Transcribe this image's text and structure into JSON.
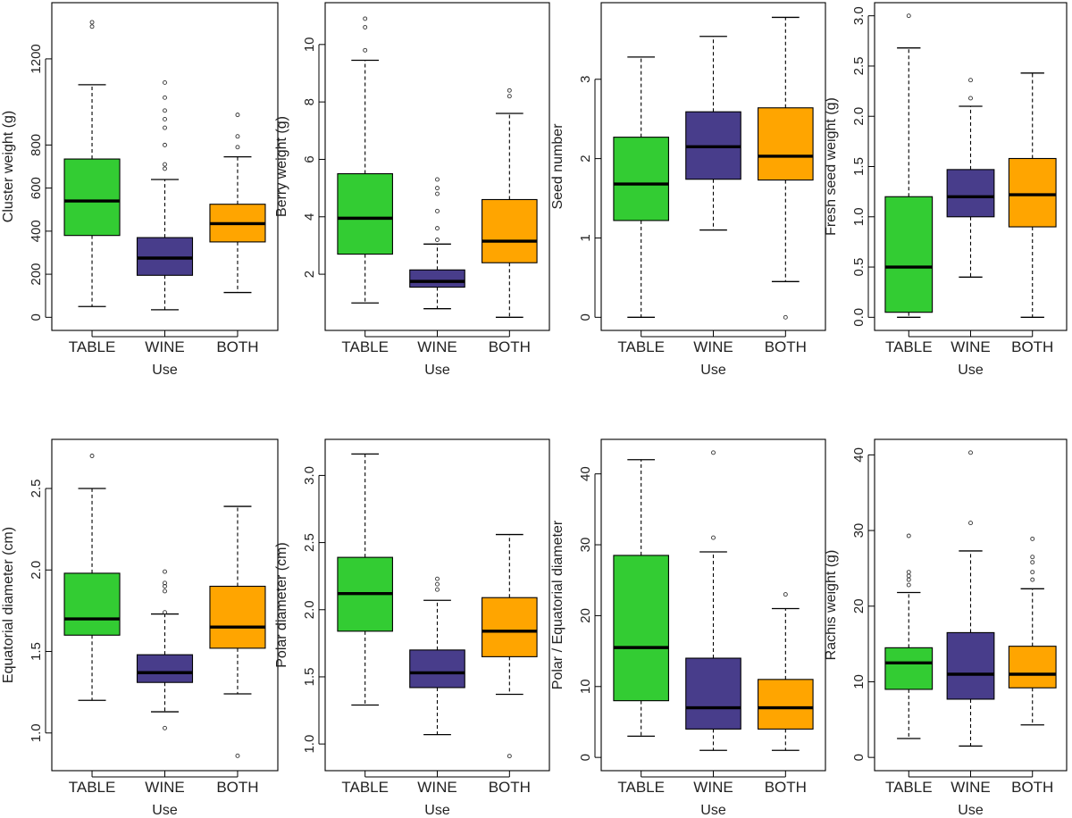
{
  "figure": {
    "palette": {
      "TABLE": "#33cc33",
      "WINE": "#483d8b",
      "BOTH": "#ffa500"
    }
  },
  "chart_data": [
    {
      "type": "boxplot",
      "ylabel": "Cluster weight (g)",
      "xlabel": "Use",
      "categories": [
        "TABLE",
        "WINE",
        "BOTH"
      ],
      "ylim": [
        0,
        1400
      ],
      "yticks": [
        0,
        200,
        400,
        600,
        800,
        1200
      ],
      "boxes": [
        {
          "min": 50,
          "q1": 380,
          "median": 540,
          "q3": 735,
          "max": 1080,
          "outliers": [
            1350,
            1370
          ]
        },
        {
          "min": 35,
          "q1": 195,
          "median": 275,
          "q3": 370,
          "max": 640,
          "outliers": [
            690,
            710,
            800,
            880,
            920,
            960,
            1020,
            1090
          ]
        },
        {
          "min": 115,
          "q1": 350,
          "median": 435,
          "q3": 525,
          "max": 745,
          "outliers": [
            790,
            840,
            940
          ]
        }
      ]
    },
    {
      "type": "boxplot",
      "ylabel": "Berry weight (g)",
      "xlabel": "Use",
      "categories": [
        "TABLE",
        "WINE",
        "BOTH"
      ],
      "ylim": [
        0.5,
        11
      ],
      "yticks": [
        2,
        4,
        6,
        8,
        10
      ],
      "boxes": [
        {
          "min": 1.0,
          "q1": 2.7,
          "median": 3.95,
          "q3": 5.5,
          "max": 9.45,
          "outliers": [
            9.8,
            10.6,
            10.9
          ]
        },
        {
          "min": 0.8,
          "q1": 1.55,
          "median": 1.75,
          "q3": 2.15,
          "max": 3.05,
          "outliers": [
            3.2,
            3.6,
            4.2,
            4.8,
            5.0,
            5.3
          ]
        },
        {
          "min": 0.5,
          "q1": 2.4,
          "median": 3.15,
          "q3": 4.6,
          "max": 7.6,
          "outliers": [
            8.2,
            8.4
          ]
        }
      ]
    },
    {
      "type": "boxplot",
      "ylabel": "Seed number",
      "xlabel": "Use",
      "categories": [
        "TABLE",
        "WINE",
        "BOTH"
      ],
      "ylim": [
        0,
        3.8
      ],
      "yticks": [
        0,
        1,
        2,
        3
      ],
      "boxes": [
        {
          "min": 0,
          "q1": 1.22,
          "median": 1.68,
          "q3": 2.27,
          "max": 3.28,
          "outliers": []
        },
        {
          "min": 1.1,
          "q1": 1.74,
          "median": 2.15,
          "q3": 2.59,
          "max": 3.54,
          "outliers": []
        },
        {
          "min": 0.45,
          "q1": 1.73,
          "median": 2.03,
          "q3": 2.64,
          "max": 3.78,
          "outliers": [
            0
          ]
        }
      ]
    },
    {
      "type": "boxplot",
      "ylabel": "Fresh seed weight (g)",
      "xlabel": "Use",
      "categories": [
        "TABLE",
        "WINE",
        "BOTH"
      ],
      "ylim": [
        0,
        3.0
      ],
      "yticks": [
        0.0,
        0.5,
        1.0,
        1.5,
        2.0,
        2.5,
        3.0
      ],
      "boxes": [
        {
          "min": 0.0,
          "q1": 0.05,
          "median": 0.5,
          "q3": 1.2,
          "max": 2.68,
          "outliers": [
            3.0
          ]
        },
        {
          "min": 0.4,
          "q1": 1.0,
          "median": 1.2,
          "q3": 1.47,
          "max": 2.1,
          "outliers": [
            2.18,
            2.36
          ]
        },
        {
          "min": 0.0,
          "q1": 0.9,
          "median": 1.22,
          "q3": 1.58,
          "max": 2.43,
          "outliers": []
        }
      ]
    },
    {
      "type": "boxplot",
      "ylabel": "Equatorial diameter (cm)",
      "xlabel": "Use",
      "categories": [
        "TABLE",
        "WINE",
        "BOTH"
      ],
      "ylim": [
        0.85,
        2.72
      ],
      "yticks": [
        1.0,
        1.5,
        2.0,
        2.5
      ],
      "boxes": [
        {
          "min": 1.2,
          "q1": 1.6,
          "median": 1.7,
          "q3": 1.98,
          "max": 2.5,
          "outliers": [
            2.7
          ]
        },
        {
          "min": 1.13,
          "q1": 1.31,
          "median": 1.37,
          "q3": 1.48,
          "max": 1.73,
          "outliers": [
            1.03,
            1.74,
            1.87,
            1.9,
            1.92,
            1.99
          ]
        },
        {
          "min": 1.24,
          "q1": 1.52,
          "median": 1.65,
          "q3": 1.9,
          "max": 2.39,
          "outliers": [
            0.86
          ]
        }
      ]
    },
    {
      "type": "boxplot",
      "ylabel": "Polar diameter (cm)",
      "xlabel": "Use",
      "categories": [
        "TABLE",
        "WINE",
        "BOTH"
      ],
      "ylim": [
        0.9,
        3.17
      ],
      "yticks": [
        1.0,
        1.5,
        2.0,
        2.5,
        3.0
      ],
      "boxes": [
        {
          "min": 1.29,
          "q1": 1.84,
          "median": 2.12,
          "q3": 2.39,
          "max": 3.16,
          "outliers": []
        },
        {
          "min": 1.07,
          "q1": 1.42,
          "median": 1.53,
          "q3": 1.7,
          "max": 2.07,
          "outliers": [
            2.15,
            2.19,
            2.23
          ]
        },
        {
          "min": 1.37,
          "q1": 1.65,
          "median": 1.84,
          "q3": 2.09,
          "max": 2.56,
          "outliers": [
            0.91
          ]
        }
      ]
    },
    {
      "type": "boxplot",
      "ylabel": "Polar / Equatorial diameter",
      "xlabel": "Use",
      "categories": [
        "TABLE",
        "WINE",
        "BOTH"
      ],
      "ylim": [
        0,
        43
      ],
      "yticks": [
        0,
        10,
        20,
        30,
        40
      ],
      "boxes": [
        {
          "min": 3,
          "q1": 8,
          "median": 15.5,
          "q3": 28.5,
          "max": 42,
          "outliers": []
        },
        {
          "min": 1,
          "q1": 4,
          "median": 7,
          "q3": 14,
          "max": 29,
          "outliers": [
            31,
            43
          ]
        },
        {
          "min": 1,
          "q1": 4,
          "median": 7,
          "q3": 11,
          "max": 21,
          "outliers": [
            23
          ]
        }
      ]
    },
    {
      "type": "boxplot",
      "ylabel": "Rachis weight (g)",
      "xlabel": "Use",
      "categories": [
        "TABLE",
        "WINE",
        "BOTH"
      ],
      "ylim": [
        0,
        40.3
      ],
      "yticks": [
        0,
        10,
        20,
        30,
        40
      ],
      "boxes": [
        {
          "min": 2.5,
          "q1": 9,
          "median": 12.5,
          "q3": 14.5,
          "max": 21.8,
          "outliers": [
            22.8,
            23.5,
            24,
            24.5,
            29.3
          ]
        },
        {
          "min": 1.5,
          "q1": 7.7,
          "median": 11,
          "q3": 16.5,
          "max": 27.3,
          "outliers": [
            31,
            40.3
          ]
        },
        {
          "min": 4.3,
          "q1": 9.2,
          "median": 11,
          "q3": 14.7,
          "max": 22.3,
          "outliers": [
            23.5,
            24.5,
            25.8,
            26.5,
            28.9
          ]
        }
      ]
    }
  ]
}
